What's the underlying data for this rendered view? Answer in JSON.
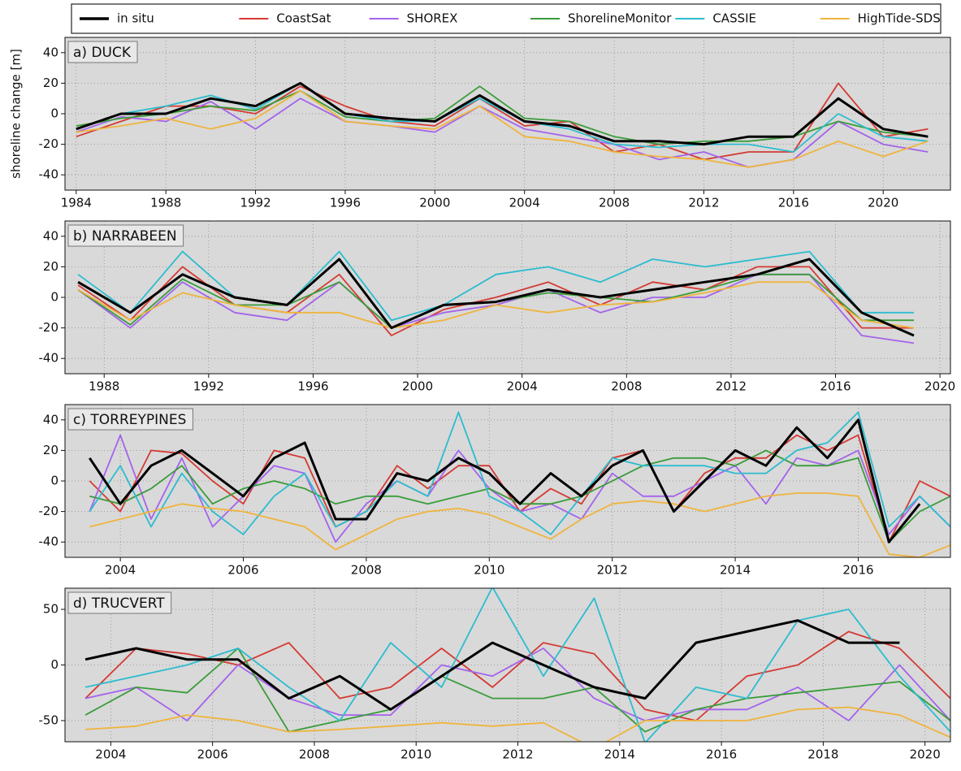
{
  "chart_data": [
    {
      "type": "line",
      "title": "a) DUCK",
      "y_label": "shoreline change [m]",
      "x": [
        1984,
        1986,
        1988,
        1990,
        1992,
        1994,
        1996,
        1998,
        2000,
        2002,
        2004,
        2006,
        2008,
        2010,
        2012,
        2014,
        2016,
        2018,
        2020,
        2022
      ],
      "xlim": [
        1983.5,
        2023
      ],
      "xticks": [
        1984,
        1988,
        1992,
        1996,
        2000,
        2004,
        2008,
        2012,
        2016,
        2020
      ],
      "ylim": [
        -50,
        50
      ],
      "yticks": [
        -40,
        -20,
        0,
        20,
        40
      ],
      "grid": true,
      "series": [
        {
          "name": "in situ",
          "color": "#000000",
          "values": [
            -10,
            0,
            0,
            10,
            5,
            20,
            0,
            -3,
            -5,
            12,
            -5,
            -8,
            -18,
            -18,
            -20,
            -15,
            -15,
            10,
            -10,
            -15
          ]
        },
        {
          "name": "CoastSat",
          "color": "#d43a33",
          "values": [
            -15,
            -5,
            5,
            5,
            0,
            18,
            5,
            -5,
            -8,
            10,
            -8,
            -5,
            -25,
            -20,
            -30,
            -25,
            -25,
            20,
            -15,
            -10
          ]
        },
        {
          "name": "SHOREX",
          "color": "#a463ec",
          "values": [
            -12,
            -2,
            -5,
            8,
            -10,
            10,
            -5,
            -8,
            -12,
            5,
            -10,
            -15,
            -20,
            -30,
            -25,
            -35,
            -30,
            -5,
            -20,
            -25
          ]
        },
        {
          "name": "ShorelineMonitor",
          "color": "#3a9c3a",
          "values": [
            -8,
            -3,
            0,
            5,
            2,
            15,
            -2,
            -5,
            -3,
            18,
            -3,
            -5,
            -15,
            -20,
            -18,
            -18,
            -15,
            -5,
            -12,
            -15
          ]
        },
        {
          "name": "CASSIE",
          "color": "#2cbccf",
          "values": [
            -10,
            0,
            5,
            12,
            3,
            20,
            0,
            -5,
            -5,
            10,
            -5,
            -10,
            -20,
            -22,
            -20,
            -20,
            -25,
            0,
            -15,
            -18
          ]
        },
        {
          "name": "HighTide-SDS",
          "color": "#efb43c",
          "values": [
            -12,
            -8,
            -3,
            -10,
            -3,
            15,
            -5,
            -8,
            -10,
            5,
            -15,
            -18,
            -25,
            -28,
            -30,
            -35,
            -30,
            -18,
            -28,
            -18
          ]
        }
      ]
    },
    {
      "type": "line",
      "title": "b) NARRABEEN",
      "x": [
        1987,
        1989,
        1991,
        1993,
        1995,
        1997,
        1999,
        2001,
        2003,
        2005,
        2007,
        2009,
        2011,
        2013,
        2015,
        2017,
        2019
      ],
      "xlim": [
        1986.5,
        2020.4
      ],
      "xticks": [
        1988,
        1992,
        1996,
        2000,
        2004,
        2008,
        2012,
        2016,
        2020
      ],
      "ylim": [
        -50,
        50
      ],
      "yticks": [
        -40,
        -20,
        0,
        20,
        40
      ],
      "grid": true,
      "series": [
        {
          "name": "in situ",
          "color": "#000000",
          "values": [
            10,
            -10,
            15,
            0,
            -5,
            25,
            -20,
            -5,
            -3,
            5,
            0,
            5,
            10,
            15,
            25,
            -10,
            -25
          ]
        },
        {
          "name": "CoastSat",
          "color": "#d43a33",
          "values": [
            8,
            -15,
            20,
            -5,
            -10,
            15,
            -25,
            -8,
            0,
            10,
            -5,
            10,
            5,
            20,
            20,
            -20,
            -20
          ]
        },
        {
          "name": "SHOREX",
          "color": "#a463ec",
          "values": [
            5,
            -20,
            10,
            -10,
            -15,
            10,
            -20,
            -10,
            -5,
            5,
            -10,
            0,
            0,
            15,
            15,
            -25,
            -30
          ]
        },
        {
          "name": "ShorelineMonitor",
          "color": "#3a9c3a",
          "values": [
            5,
            -18,
            12,
            -5,
            -5,
            10,
            -20,
            -5,
            -3,
            3,
            0,
            -3,
            5,
            15,
            15,
            -15,
            -15
          ]
        },
        {
          "name": "CASSIE",
          "color": "#2cbccf",
          "values": [
            15,
            -10,
            30,
            0,
            -5,
            30,
            -15,
            -5,
            15,
            20,
            10,
            25,
            20,
            25,
            30,
            -10,
            -10
          ]
        },
        {
          "name": "HighTide-SDS",
          "color": "#efb43c",
          "values": [
            5,
            -15,
            3,
            -5,
            -10,
            -10,
            -20,
            -15,
            -5,
            -10,
            -5,
            -3,
            3,
            10,
            10,
            -15,
            -20
          ]
        }
      ]
    },
    {
      "type": "line",
      "title": "c) TORREYPINES",
      "x": [
        2003.5,
        2004,
        2004.5,
        2005,
        2005.5,
        2006,
        2006.5,
        2007,
        2007.5,
        2008,
        2008.5,
        2009,
        2009.5,
        2010,
        2010.5,
        2011,
        2011.5,
        2012,
        2012.5,
        2013,
        2013.5,
        2014,
        2014.5,
        2015,
        2015.5,
        2016,
        2016.5,
        2017,
        2017.5
      ],
      "xlim": [
        2003.1,
        2017.5
      ],
      "xticks": [
        2004,
        2006,
        2008,
        2010,
        2012,
        2014,
        2016
      ],
      "ylim": [
        -50,
        50
      ],
      "yticks": [
        -40,
        -20,
        0,
        20,
        40
      ],
      "grid": true,
      "series": [
        {
          "name": "in situ",
          "color": "#000000",
          "values": [
            15,
            -15,
            10,
            20,
            5,
            -10,
            15,
            25,
            -25,
            -25,
            5,
            0,
            15,
            5,
            -15,
            5,
            -10,
            10,
            20,
            -20,
            0,
            20,
            10,
            35,
            15,
            40,
            -40,
            -15,
            null
          ]
        },
        {
          "name": "CoastSat",
          "color": "#d43a33",
          "values": [
            0,
            -20,
            20,
            18,
            0,
            -15,
            20,
            15,
            -30,
            -20,
            10,
            -5,
            10,
            10,
            -20,
            -5,
            -15,
            15,
            20,
            -20,
            5,
            15,
            15,
            30,
            20,
            30,
            -40,
            0,
            -10
          ]
        },
        {
          "name": "SHOREX",
          "color": "#a463ec",
          "values": [
            -20,
            30,
            -25,
            15,
            -30,
            -10,
            10,
            5,
            -40,
            -15,
            0,
            -10,
            20,
            -5,
            -20,
            -15,
            -25,
            5,
            -10,
            -10,
            0,
            10,
            -15,
            15,
            10,
            20,
            -35,
            -10,
            -30
          ]
        },
        {
          "name": "ShorelineMonitor",
          "color": "#3a9c3a",
          "values": [
            -10,
            -15,
            -5,
            10,
            -15,
            -5,
            0,
            -5,
            -15,
            -10,
            -10,
            -15,
            -10,
            -5,
            -15,
            -15,
            -10,
            0,
            10,
            15,
            15,
            10,
            20,
            10,
            10,
            15,
            -40,
            -20,
            -10
          ]
        },
        {
          "name": "CASSIE",
          "color": "#2cbccf",
          "values": [
            -20,
            10,
            -30,
            5,
            -20,
            -35,
            -10,
            5,
            -30,
            -20,
            0,
            -10,
            45,
            -10,
            -20,
            -35,
            -10,
            15,
            10,
            10,
            10,
            5,
            5,
            20,
            25,
            45,
            -30,
            -10,
            -30
          ]
        },
        {
          "name": "HighTide-SDS",
          "color": "#efb43c",
          "values": [
            -30,
            -25,
            -20,
            -15,
            -18,
            -20,
            -25,
            -30,
            -45,
            -35,
            -25,
            -20,
            -18,
            -22,
            -30,
            -38,
            -25,
            -15,
            -13,
            -15,
            -20,
            -15,
            -10,
            -8,
            -8,
            -10,
            -48,
            -50,
            -42
          ]
        }
      ]
    },
    {
      "type": "line",
      "title": "d) TRUCVERT",
      "x": [
        2003.5,
        2004.5,
        2005.5,
        2006.5,
        2007.5,
        2008.5,
        2009.5,
        2010.5,
        2011.5,
        2012.5,
        2013.5,
        2014.5,
        2015.5,
        2016.5,
        2017.5,
        2018.5,
        2019.5,
        2020.5
      ],
      "xlim": [
        2003.1,
        2020.5
      ],
      "xticks": [
        2004,
        2006,
        2008,
        2010,
        2012,
        2014,
        2016,
        2018,
        2020
      ],
      "ylim": [
        -69,
        69
      ],
      "yticks": [
        -50,
        0,
        50
      ],
      "grid": true,
      "series": [
        {
          "name": "in situ",
          "color": "#000000",
          "values": [
            5,
            15,
            5,
            5,
            -30,
            -10,
            -40,
            -10,
            20,
            0,
            -20,
            -30,
            20,
            30,
            40,
            20,
            20,
            null
          ]
        },
        {
          "name": "CoastSat",
          "color": "#d43a33",
          "values": [
            -30,
            15,
            10,
            0,
            20,
            -30,
            -20,
            15,
            -20,
            20,
            10,
            -40,
            -50,
            -10,
            0,
            30,
            15,
            -30
          ]
        },
        {
          "name": "SHOREX",
          "color": "#a463ec",
          "values": [
            -30,
            -20,
            -50,
            0,
            -30,
            -45,
            -45,
            0,
            -10,
            15,
            -30,
            -50,
            -40,
            -40,
            -20,
            -50,
            0,
            -50
          ]
        },
        {
          "name": "ShorelineMonitor",
          "color": "#3a9c3a",
          "values": [
            -45,
            -20,
            -25,
            15,
            -60,
            -50,
            -40,
            -10,
            -30,
            -30,
            -20,
            -60,
            -40,
            -30,
            -25,
            -20,
            -15,
            -50
          ]
        },
        {
          "name": "CASSIE",
          "color": "#2cbccf",
          "values": [
            -20,
            -10,
            0,
            15,
            -20,
            -50,
            20,
            -20,
            70,
            -10,
            60,
            -70,
            -20,
            -30,
            40,
            50,
            -10,
            -60
          ]
        },
        {
          "name": "HighTide-SDS",
          "color": "#efb43c",
          "values": [
            -58,
            -55,
            -45,
            -50,
            -60,
            -58,
            -55,
            -52,
            -55,
            -52,
            -75,
            -50,
            -50,
            -50,
            -40,
            -38,
            -45,
            -65
          ]
        }
      ]
    }
  ]
}
